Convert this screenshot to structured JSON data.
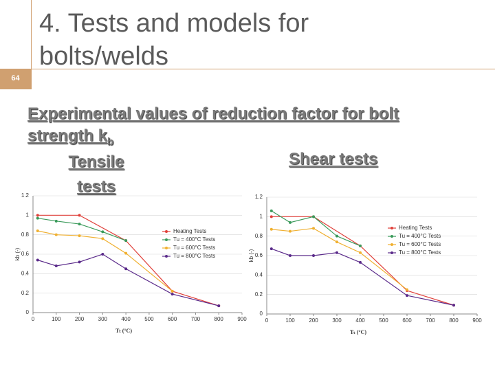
{
  "page_number": "64",
  "title": "4. Tests and models for bolts/welds",
  "heading": {
    "text": "Experimental values of reduction factor for bolt strength k",
    "subscript": "b"
  },
  "labels": {
    "tensile": "Tensile tests",
    "shear": "Shear tests"
  },
  "chart_data": [
    {
      "type": "line",
      "xlabel": "Tₜ (°C)",
      "ylabel": "kb (-)",
      "xlim": [
        0,
        900
      ],
      "xticks": [
        0,
        100,
        200,
        300,
        400,
        500,
        600,
        700,
        800,
        900
      ],
      "ylim": [
        0,
        1.2
      ],
      "yticks": [
        0,
        0.2,
        0.4,
        0.6,
        0.8,
        1,
        1.2
      ],
      "series": [
        {
          "name": "Heating Tests",
          "color": "#e0403a",
          "x": [
            20,
            200,
            400,
            600,
            800
          ],
          "values": [
            1.0,
            1.0,
            0.74,
            0.22,
            0.07
          ]
        },
        {
          "name": "Tu = 400°C Tests",
          "color": "#3a9a5a",
          "x": [
            20,
            100,
            200,
            300,
            400
          ],
          "values": [
            0.97,
            0.94,
            0.91,
            0.83,
            0.74
          ]
        },
        {
          "name": "Tu = 600°C Tests",
          "color": "#f0b030",
          "x": [
            20,
            100,
            200,
            300,
            400,
            600
          ],
          "values": [
            0.84,
            0.8,
            0.79,
            0.76,
            0.61,
            0.22
          ]
        },
        {
          "name": "Tu = 800°C Tests",
          "color": "#5a2a8a",
          "x": [
            20,
            100,
            200,
            300,
            400,
            600,
            800
          ],
          "values": [
            0.54,
            0.48,
            0.52,
            0.6,
            0.45,
            0.19,
            0.07
          ]
        }
      ]
    },
    {
      "type": "line",
      "xlabel": "Tₜ (°C)",
      "ylabel": "kb (-)",
      "xlim": [
        0,
        900
      ],
      "xticks": [
        0,
        100,
        200,
        300,
        400,
        500,
        600,
        700,
        800,
        900
      ],
      "ylim": [
        0,
        1.2
      ],
      "yticks": [
        0,
        0.2,
        0.4,
        0.6,
        0.8,
        1,
        1.2
      ],
      "series": [
        {
          "name": "Heating Tests",
          "color": "#e0403a",
          "x": [
            20,
            200,
            400,
            600,
            800
          ],
          "values": [
            1.0,
            1.0,
            0.7,
            0.24,
            0.09
          ]
        },
        {
          "name": "Tu = 400°C Tests",
          "color": "#3a9a5a",
          "x": [
            20,
            100,
            200,
            300,
            400
          ],
          "values": [
            1.06,
            0.94,
            1.0,
            0.8,
            0.7
          ]
        },
        {
          "name": "Tu = 600°C Tests",
          "color": "#f0b030",
          "x": [
            20,
            100,
            200,
            300,
            400,
            600
          ],
          "values": [
            0.87,
            0.85,
            0.88,
            0.74,
            0.63,
            0.25
          ]
        },
        {
          "name": "Tu = 800°C Tests",
          "color": "#5a2a8a",
          "x": [
            20,
            100,
            200,
            300,
            400,
            600,
            800
          ],
          "values": [
            0.67,
            0.6,
            0.6,
            0.63,
            0.53,
            0.19,
            0.09
          ]
        }
      ]
    }
  ]
}
